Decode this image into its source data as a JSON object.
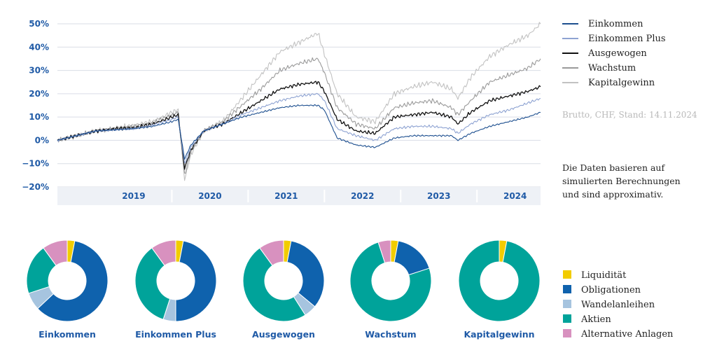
{
  "colors": {
    "accent_text": "#1f5aa6",
    "grid": "#d9dde6",
    "liquiditaet": "#f2cc00",
    "obligationen": "#0f62ad",
    "wandelanleihen": "#a6c4df",
    "aktien": "#00a39a",
    "alternative": "#d891bf"
  },
  "info": {
    "stand": "Brutto, CHF, Stand: 14.11.2024",
    "note_lines": [
      "Die Daten basieren auf",
      "simulierten Berechnungen",
      "und sind approximativ."
    ]
  },
  "chart_data": [
    {
      "type": "line",
      "y_ticks": [
        "50%",
        "40%",
        "30%",
        "20%",
        "10%",
        "0%",
        "−10%",
        "−20%"
      ],
      "ylim": [
        -20,
        50
      ],
      "x_labels": [
        "2019",
        "2020",
        "2021",
        "2022",
        "2023",
        "2024"
      ],
      "xlim": [
        "2018-07",
        "2024-11"
      ],
      "grid": true,
      "legend_position": "right",
      "series": [
        {
          "name": "Einkommen",
          "color": "#1d4f8f",
          "x": [
            "2018-07",
            "2018-10",
            "2019-01",
            "2019-04",
            "2019-07",
            "2019-10",
            "2020-01",
            "2020-02",
            "2020-03",
            "2020-04",
            "2020-06",
            "2020-09",
            "2020-12",
            "2021-03",
            "2021-06",
            "2021-09",
            "2021-12",
            "2022-01",
            "2022-03",
            "2022-06",
            "2022-09",
            "2022-12",
            "2023-03",
            "2023-06",
            "2023-09",
            "2023-10",
            "2023-12",
            "2024-03",
            "2024-06",
            "2024-09",
            "2024-11"
          ],
          "values": [
            0,
            2,
            4,
            4.5,
            5,
            6,
            8,
            9,
            -8,
            -2,
            4,
            7,
            10,
            12,
            14,
            15,
            15,
            13,
            1,
            -2,
            -3,
            1,
            2,
            2,
            2,
            0,
            3,
            6,
            8,
            10,
            12
          ]
        },
        {
          "name": "Einkommen Plus",
          "color": "#8ea3d2",
          "x": [
            "2018-07",
            "2018-10",
            "2019-01",
            "2019-04",
            "2019-07",
            "2019-10",
            "2020-01",
            "2020-02",
            "2020-03",
            "2020-04",
            "2020-06",
            "2020-09",
            "2020-12",
            "2021-03",
            "2021-06",
            "2021-09",
            "2021-12",
            "2022-01",
            "2022-03",
            "2022-06",
            "2022-09",
            "2022-12",
            "2023-03",
            "2023-06",
            "2023-09",
            "2023-10",
            "2023-12",
            "2024-03",
            "2024-06",
            "2024-09",
            "2024-11"
          ],
          "values": [
            0,
            2,
            4,
            4.5,
            5,
            6.5,
            9,
            10,
            -10,
            -3,
            4,
            7,
            11,
            14,
            17,
            19,
            20,
            17,
            5,
            2,
            0,
            5,
            6,
            6,
            5,
            3,
            7,
            11,
            13,
            16,
            18
          ]
        },
        {
          "name": "Ausgewogen",
          "color": "#111111",
          "x": [
            "2018-07",
            "2018-10",
            "2019-01",
            "2019-04",
            "2019-07",
            "2019-10",
            "2020-01",
            "2020-02",
            "2020-03",
            "2020-04",
            "2020-06",
            "2020-09",
            "2020-12",
            "2021-03",
            "2021-06",
            "2021-09",
            "2021-12",
            "2022-01",
            "2022-03",
            "2022-06",
            "2022-09",
            "2022-12",
            "2023-03",
            "2023-06",
            "2023-09",
            "2023-10",
            "2023-12",
            "2024-03",
            "2024-06",
            "2024-09",
            "2024-11"
          ],
          "values": [
            0,
            2,
            4,
            5,
            5.5,
            7,
            10,
            11,
            -12,
            -4,
            4,
            7,
            12,
            17,
            22,
            24,
            25,
            21,
            9,
            4,
            3,
            10,
            11,
            12,
            10,
            7,
            12,
            17,
            19,
            21,
            23
          ]
        },
        {
          "name": "Wachstum",
          "color": "#9a9a9a",
          "x": [
            "2018-07",
            "2018-10",
            "2019-01",
            "2019-04",
            "2019-07",
            "2019-10",
            "2020-01",
            "2020-02",
            "2020-03",
            "2020-04",
            "2020-06",
            "2020-09",
            "2020-12",
            "2021-03",
            "2021-06",
            "2021-09",
            "2021-12",
            "2022-01",
            "2022-03",
            "2022-06",
            "2022-09",
            "2022-12",
            "2023-03",
            "2023-06",
            "2023-09",
            "2023-10",
            "2023-12",
            "2024-03",
            "2024-06",
            "2024-09",
            "2024-11"
          ],
          "values": [
            0,
            2,
            4,
            5,
            6,
            7.5,
            11,
            12,
            -15,
            -5,
            4,
            8,
            15,
            22,
            30,
            33,
            35,
            29,
            14,
            7,
            5,
            14,
            16,
            17,
            14,
            11,
            17,
            25,
            28,
            31,
            35
          ]
        },
        {
          "name": "Kapitalgewinn",
          "color": "#c2c2c2",
          "x": [
            "2018-07",
            "2018-10",
            "2019-01",
            "2019-04",
            "2019-07",
            "2019-10",
            "2020-01",
            "2020-02",
            "2020-03",
            "2020-04",
            "2020-06",
            "2020-09",
            "2020-12",
            "2021-03",
            "2021-06",
            "2021-09",
            "2021-12",
            "2022-01",
            "2022-03",
            "2022-06",
            "2022-09",
            "2022-12",
            "2023-03",
            "2023-06",
            "2023-09",
            "2023-10",
            "2023-12",
            "2024-03",
            "2024-06",
            "2024-09",
            "2024-11"
          ],
          "values": [
            0,
            2,
            4,
            5,
            6.5,
            8,
            12,
            13,
            -17,
            -6,
            4,
            8,
            18,
            28,
            38,
            42,
            46,
            37,
            20,
            10,
            8,
            20,
            23,
            25,
            22,
            18,
            27,
            36,
            41,
            45,
            50
          ]
        }
      ]
    },
    {
      "type": "pie",
      "legend_position": "right",
      "categories": [
        "Liquidität",
        "Obligationen",
        "Wandelanleihen",
        "Aktien",
        "Alternative Anlagen"
      ],
      "donuts": [
        {
          "name": "Einkommen",
          "values": [
            3,
            60,
            7,
            20,
            10
          ]
        },
        {
          "name": "Einkommen Plus",
          "values": [
            3,
            47,
            5,
            35,
            10
          ]
        },
        {
          "name": "Ausgewogen",
          "values": [
            3,
            33,
            5,
            49,
            10
          ]
        },
        {
          "name": "Wachstum",
          "values": [
            3,
            17,
            0,
            75,
            5
          ]
        },
        {
          "name": "Kapitalgewinn",
          "values": [
            3,
            0,
            0,
            97,
            0
          ]
        }
      ]
    }
  ]
}
